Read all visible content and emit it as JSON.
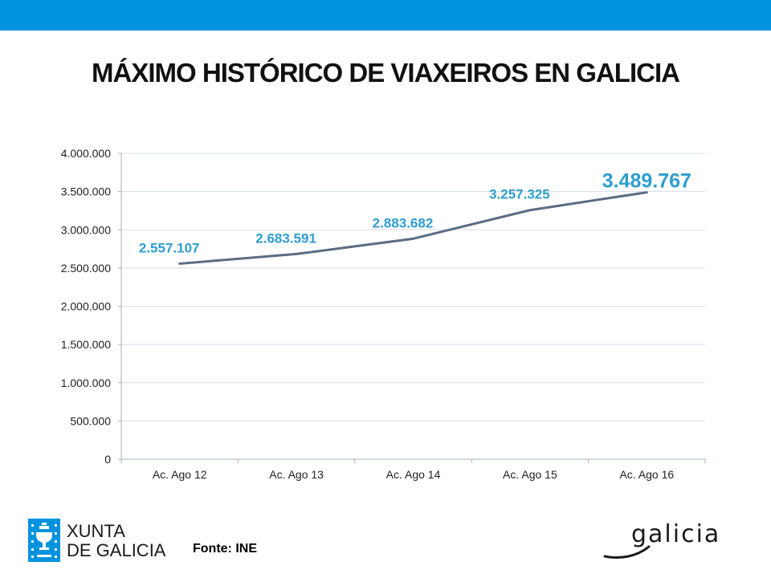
{
  "header": {
    "title": "MÁXIMO HISTÓRICO DE VIAXEIROS EN GALICIA",
    "band_color": "#0093DD"
  },
  "chart_data": {
    "type": "line",
    "title": "MÁXIMO HISTÓRICO DE VIAXEIROS EN GALICIA",
    "categories": [
      "Ac. Ago 12",
      "Ac. Ago 13",
      "Ac. Ago 14",
      "Ac. Ago 15",
      "Ac. Ago 16"
    ],
    "series": [
      {
        "values": [
          2557107,
          2683591,
          2883682,
          3257325,
          3489767
        ],
        "labels": [
          "2.557.107",
          "2.683.591",
          "2.883.682",
          "3.257.325",
          "3.489.767"
        ],
        "color": "#5B6C84"
      }
    ],
    "yticks": [
      0,
      500000,
      1000000,
      1500000,
      2000000,
      2500000,
      3000000,
      3500000,
      4000000
    ],
    "ytick_labels": [
      "0",
      "500.000",
      "1.000.000",
      "1.500.000",
      "2.000.000",
      "2.500.000",
      "3.000.000",
      "3.500.000",
      "4.000.000"
    ],
    "ylim": [
      0,
      4000000
    ],
    "grid": true,
    "label_color": "#2E9DD0",
    "xlabel": "",
    "ylabel": ""
  },
  "footer": {
    "source": "Fonte: INE",
    "xunta_logo_text": [
      "XUNTA",
      "DE GALICIA"
    ],
    "galicia_logo_text": "galicia",
    "logo_color": "#0093DD"
  }
}
